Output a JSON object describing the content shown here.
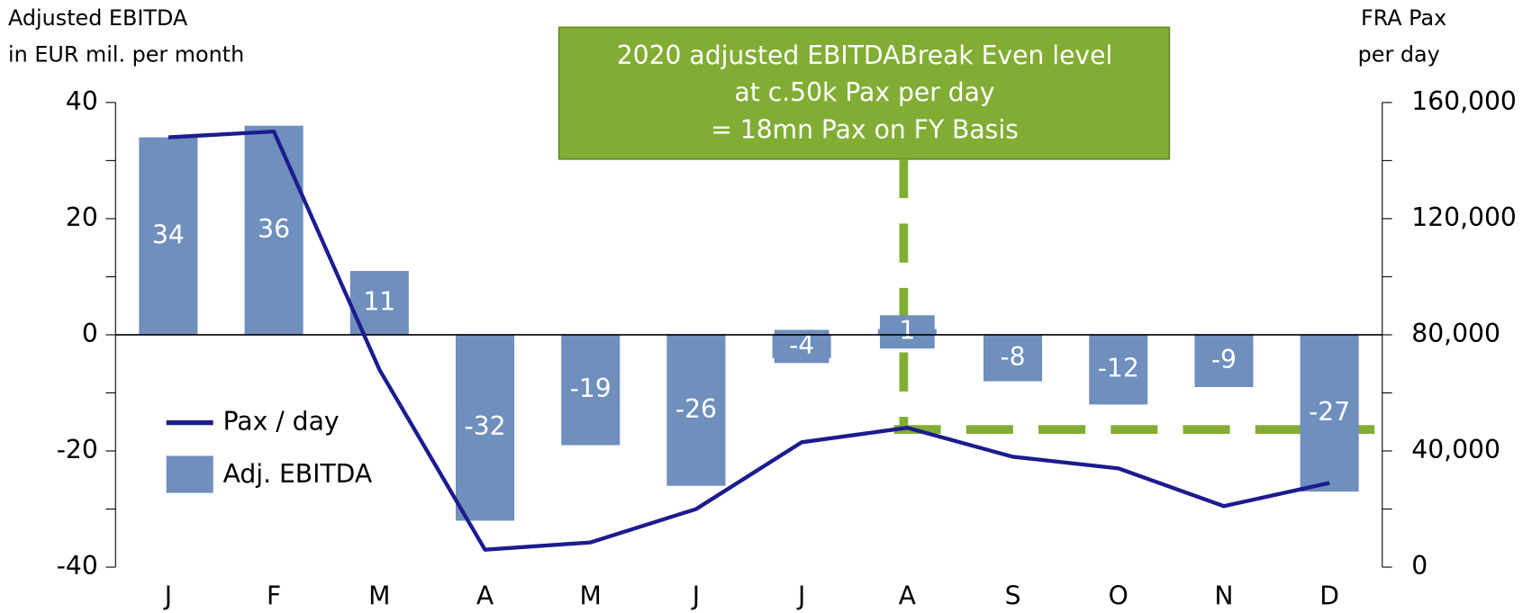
{
  "chart_data": {
    "type": "bar_line",
    "ylabel": [
      "Adjusted EBITDA",
      "in EUR mil. per month"
    ],
    "y2label": [
      "FRA Pax",
      "per day"
    ],
    "annotation": [
      "2020 adjusted EBITDABreak Even level",
      "at c.50k Pax per day",
      "= 18mn Pax on FY Basis"
    ],
    "categories": [
      "J",
      "F",
      "M",
      "A",
      "M",
      "J",
      "J",
      "A",
      "S",
      "O",
      "N",
      "D"
    ],
    "series": [
      {
        "name": "Adj. EBITDA",
        "type": "bar",
        "color": "#6f8fbd",
        "axis": "y",
        "values": [
          34,
          36,
          11,
          -32,
          -19,
          -26,
          -4,
          1,
          -8,
          -12,
          -9,
          -27
        ]
      },
      {
        "name": "Pax / day",
        "type": "line",
        "color": "#1c1c8f",
        "axis": "y2",
        "values": [
          148000,
          150000,
          68000,
          6000,
          8500,
          20000,
          43000,
          48000,
          38000,
          34000,
          21000,
          29000
        ]
      }
    ],
    "ylim": [
      -40,
      40
    ],
    "yticks": [
      -40,
      -20,
      0,
      20,
      40
    ],
    "yminor": [
      -30,
      -10,
      10,
      30
    ],
    "y2lim": [
      0,
      160000
    ],
    "y2ticks": [
      0,
      {
        "value": 40000,
        "label": "40,000"
      },
      {
        "value": 80000,
        "label": "80,000"
      },
      {
        "value": 120000,
        "label": "120,000"
      },
      {
        "value": 160000,
        "label": "160,000"
      }
    ],
    "y2minor": [
      20000,
      60000,
      100000,
      140000
    ],
    "annotation_color": "#82ad34"
  }
}
